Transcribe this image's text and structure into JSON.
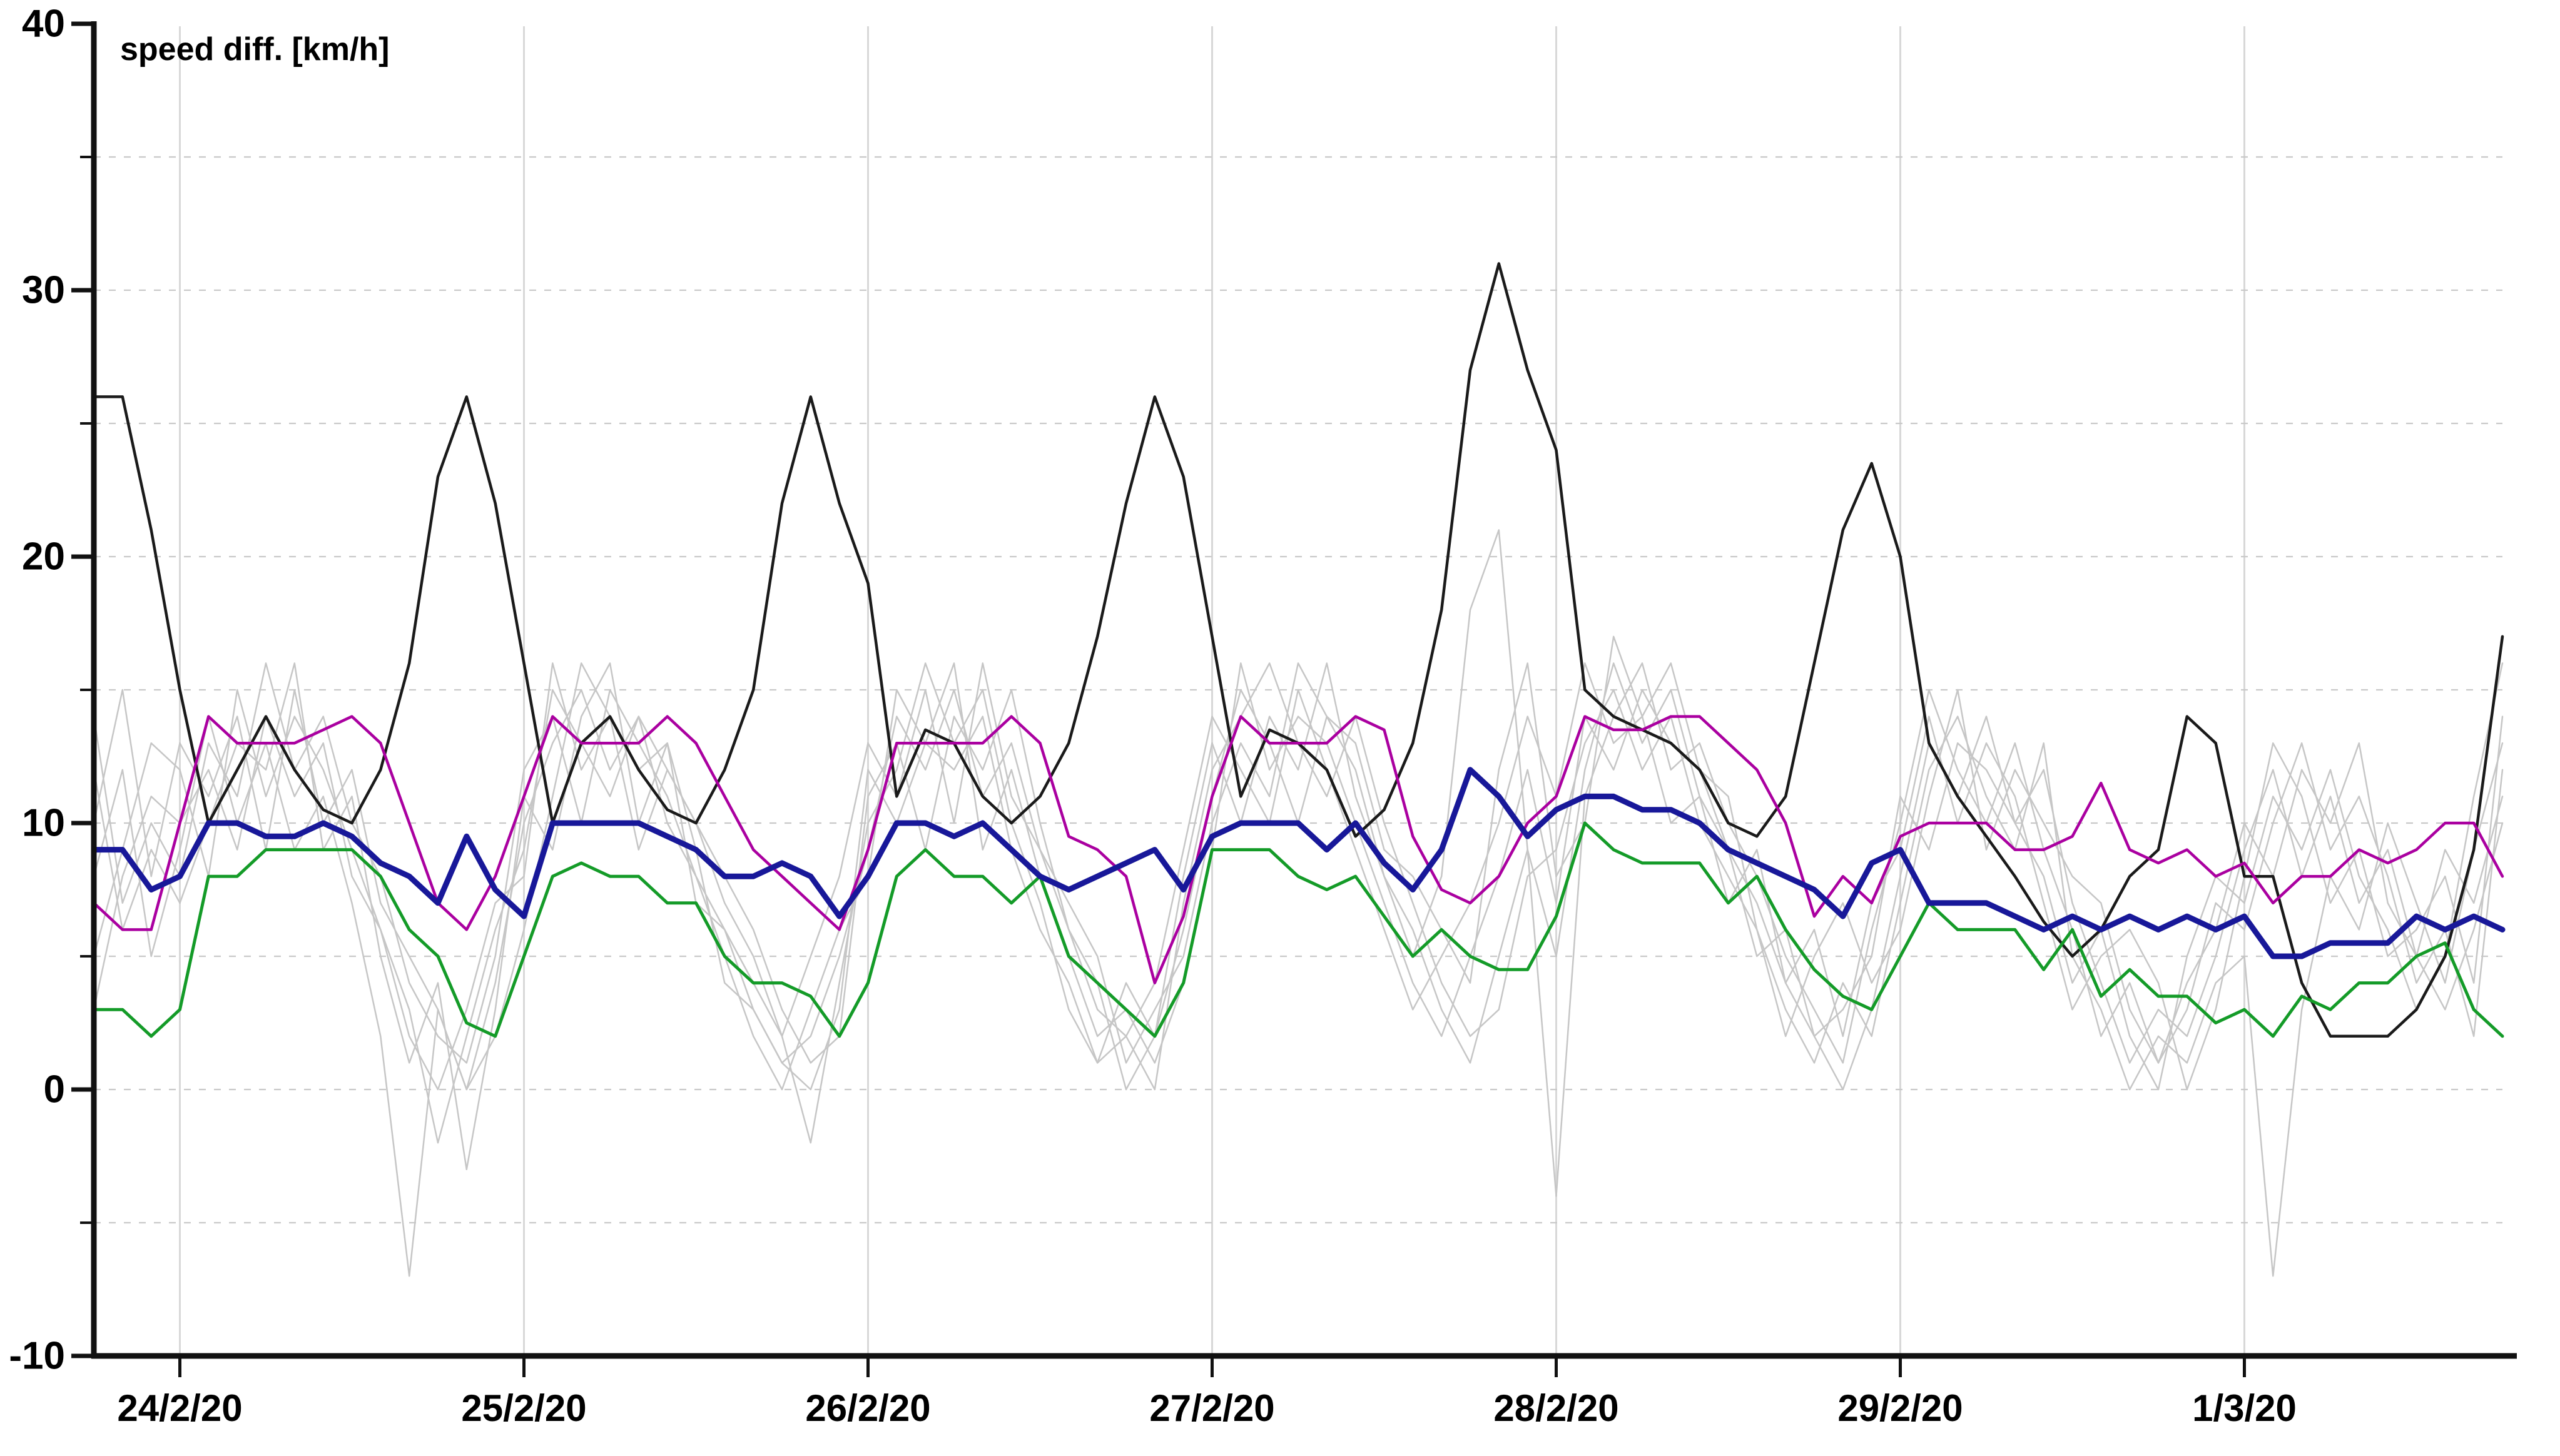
{
  "title": "speed diff. [km/h]",
  "colors": {
    "black": "#1a1a1a",
    "magenta": "#aa00a0",
    "blue": "#181899",
    "green": "#149b28",
    "gray": "#c6c6c6",
    "grid_dashed": "#c9c9c9",
    "grid_day": "#d8d8d8",
    "axis": "#111111"
  },
  "chart_data": {
    "type": "line",
    "title": "speed diff. [km/h]",
    "xlabel": "",
    "ylabel": "speed diff. [km/h]",
    "ylim": [
      -10,
      40
    ],
    "y_major_ticks": [
      40,
      30,
      20,
      10,
      0,
      -10
    ],
    "y_major_tick_labels": [
      "40",
      "30",
      "20",
      "10",
      "0",
      "-10"
    ],
    "y_minor_gridlines": [
      35,
      30,
      25,
      20,
      15,
      10,
      5,
      0,
      -5
    ],
    "grid": "dashed horizontal every 5, solid vertical per day",
    "legend": "none",
    "x_tick_labels": [
      "24/2/20",
      "25/2/20",
      "26/2/20",
      "27/2/20",
      "28/2/20",
      "29/2/20",
      "1/3/20"
    ],
    "x_start": "23/2/20 18:00",
    "x_step_hours": 2,
    "x_total_points": 85,
    "x_day_tick_indices": [
      3,
      15,
      27,
      39,
      51,
      63,
      75
    ],
    "series": [
      {
        "name": "gray-1",
        "color_key": "gray",
        "width": 2.5,
        "values": [
          8,
          12,
          5,
          9,
          14,
          10,
          13,
          9,
          11,
          7,
          2,
          -7,
          3,
          0,
          4,
          10,
          13,
          15,
          12,
          14,
          10,
          8,
          6,
          3,
          1,
          2,
          5,
          9,
          14,
          12,
          15,
          11,
          13,
          9,
          6,
          4,
          0,
          2,
          6,
          11,
          15,
          13,
          10,
          14,
          12,
          8,
          5,
          8,
          18,
          21,
          9,
          5,
          12,
          16,
          13,
          15,
          11,
          9,
          7,
          4,
          2,
          0,
          3,
          8,
          13,
          11,
          14,
          10,
          12,
          7,
          4,
          1,
          3,
          2,
          5,
          9,
          12,
          8,
          11,
          7,
          9,
          5,
          3,
          6,
          10
        ]
      },
      {
        "name": "gray-2",
        "color_key": "gray",
        "width": 2.5,
        "values": [
          5,
          9,
          13,
          12,
          8,
          15,
          11,
          14,
          12,
          9,
          6,
          2,
          0,
          3,
          7,
          8,
          16,
          12,
          14,
          9,
          12,
          10,
          7,
          5,
          2,
          -2,
          4,
          10,
          12,
          16,
          13,
          15,
          10,
          7,
          3,
          1,
          4,
          2,
          8,
          13,
          10,
          14,
          12,
          16,
          11,
          8,
          6,
          3,
          1,
          5,
          9,
          -4,
          11,
          14,
          16,
          12,
          13,
          10,
          8,
          5,
          3,
          1,
          6,
          10,
          15,
          12,
          10,
          13,
          9,
          6,
          2,
          4,
          1,
          3,
          7,
          6,
          10,
          13,
          9,
          11,
          8,
          4,
          6,
          2,
          12
        ]
      },
      {
        "name": "gray-3",
        "color_key": "gray",
        "width": 2.5,
        "values": [
          14,
          7,
          10,
          8,
          13,
          11,
          16,
          12,
          14,
          10,
          8,
          4,
          2,
          1,
          5,
          12,
          14,
          10,
          15,
          13,
          11,
          8,
          5,
          2,
          0,
          3,
          6,
          8,
          15,
          13,
          12,
          14,
          9,
          6,
          4,
          1,
          2,
          0,
          7,
          12,
          14,
          16,
          13,
          11,
          14,
          10,
          7,
          4,
          2,
          3,
          8,
          9,
          13,
          15,
          12,
          14,
          10,
          8,
          6,
          3,
          1,
          4,
          2,
          7,
          12,
          14,
          11,
          9,
          13,
          5,
          3,
          0,
          2,
          1,
          4,
          5,
          -7,
          3,
          8,
          6,
          10,
          7,
          4,
          9,
          13
        ]
      },
      {
        "name": "gray-4",
        "color_key": "gray",
        "width": 2.5,
        "values": [
          10,
          15,
          8,
          13,
          11,
          14,
          9,
          15,
          10,
          12,
          7,
          5,
          3,
          0,
          2,
          6,
          11,
          16,
          14,
          12,
          13,
          9,
          4,
          3,
          1,
          0,
          3,
          12,
          10,
          13,
          16,
          9,
          12,
          8,
          5,
          2,
          3,
          1,
          4,
          9,
          16,
          12,
          14,
          13,
          10,
          7,
          4,
          2,
          5,
          8,
          12,
          7,
          14,
          12,
          15,
          13,
          12,
          9,
          5,
          6,
          2,
          3,
          5,
          11,
          9,
          13,
          12,
          10,
          8,
          4,
          6,
          2,
          0,
          5,
          8,
          7,
          11,
          9,
          12,
          8,
          6,
          3,
          5,
          11,
          16
        ]
      },
      {
        "name": "gray-5",
        "color_key": "gray",
        "width": 2.5,
        "values": [
          3,
          8,
          11,
          10,
          12,
          9,
          14,
          11,
          13,
          8,
          6,
          3,
          -2,
          2,
          6,
          9,
          15,
          13,
          11,
          14,
          12,
          10,
          8,
          6,
          3,
          1,
          2,
          11,
          13,
          9,
          14,
          12,
          15,
          10,
          6,
          3,
          2,
          4,
          9,
          14,
          12,
          10,
          15,
          12,
          9,
          6,
          3,
          5,
          7,
          10,
          14,
          11,
          16,
          13,
          14,
          10,
          11,
          7,
          9,
          4,
          6,
          2,
          7,
          9,
          14,
          10,
          13,
          11,
          7,
          3,
          5,
          6,
          4,
          0,
          3,
          8,
          13,
          11,
          7,
          9,
          5,
          6,
          8,
          4,
          14
        ]
      },
      {
        "name": "gray-6",
        "color_key": "gray",
        "width": 2.5,
        "values": [
          12,
          6,
          9,
          7,
          10,
          13,
          12,
          16,
          9,
          11,
          5,
          1,
          4,
          -3,
          3,
          11,
          9,
          14,
          16,
          10,
          13,
          7,
          6,
          4,
          2,
          5,
          8,
          13,
          11,
          15,
          10,
          16,
          11,
          9,
          7,
          5,
          1,
          3,
          5,
          10,
          13,
          11,
          16,
          14,
          13,
          9,
          8,
          6,
          4,
          12,
          16,
          8,
          10,
          17,
          14,
          16,
          12,
          11,
          6,
          2,
          5,
          7,
          4,
          6,
          11,
          15,
          9,
          12,
          10,
          8,
          7,
          3,
          1,
          4,
          6,
          10,
          8,
          12,
          10,
          13,
          7,
          5,
          9,
          7,
          11
        ]
      },
      {
        "name": "black",
        "color_key": "black",
        "width": 4.5,
        "values": [
          26,
          26,
          21,
          15,
          10,
          12,
          14,
          12,
          10.5,
          10,
          12,
          16,
          23,
          26,
          22,
          16,
          10,
          13,
          14,
          12,
          10.5,
          10,
          12,
          15,
          22,
          26,
          22,
          19,
          11,
          13.5,
          13,
          11,
          10,
          11,
          13,
          17,
          22,
          26,
          23,
          17,
          11,
          13.5,
          13,
          12,
          9.5,
          10.5,
          13,
          18,
          27,
          31,
          27,
          24,
          15,
          14,
          13.5,
          13,
          12,
          10,
          9.5,
          11,
          16,
          21,
          23.5,
          20,
          13,
          11,
          9.5,
          8,
          6.3,
          5,
          6,
          8,
          9,
          14,
          13,
          8,
          8,
          4,
          2,
          2,
          2,
          3,
          5,
          9,
          17
        ]
      },
      {
        "name": "magenta",
        "color_key": "magenta",
        "width": 4.5,
        "values": [
          7,
          6,
          6,
          10,
          14,
          13,
          13,
          13,
          13.5,
          14,
          13,
          10,
          7,
          6,
          8,
          11,
          14,
          13,
          13,
          13,
          14,
          13,
          11,
          9,
          8,
          7,
          6,
          9,
          13,
          13,
          13,
          13,
          14,
          13,
          9.5,
          9,
          8,
          4,
          6.5,
          11,
          14,
          13,
          13,
          13,
          14,
          13.5,
          9.5,
          7.5,
          7,
          8,
          10,
          11,
          14,
          13.5,
          13.5,
          14,
          14,
          13,
          12,
          10,
          6.5,
          8,
          7,
          9.5,
          10,
          10,
          10,
          9,
          9,
          9.5,
          11.5,
          9,
          8.5,
          9,
          8,
          8.5,
          7,
          8,
          8,
          9,
          8.5,
          9,
          10,
          10,
          8
        ]
      },
      {
        "name": "green",
        "color_key": "green",
        "width": 5,
        "values": [
          3,
          3,
          2,
          3,
          8,
          8,
          9,
          9,
          9,
          9,
          8,
          6,
          5,
          2.5,
          2,
          5,
          8,
          8.5,
          8,
          8,
          7,
          7,
          5,
          4,
          4,
          3.5,
          2,
          4,
          8,
          9,
          8,
          8,
          7,
          8,
          5,
          4,
          3,
          2,
          4,
          9,
          9,
          9,
          8,
          7.5,
          8,
          6.5,
          5,
          6,
          5,
          4.5,
          4.5,
          6.5,
          10,
          9,
          8.5,
          8.5,
          8.5,
          7,
          8,
          6,
          4.5,
          3.5,
          3,
          5,
          7,
          6,
          6,
          6,
          4.5,
          6,
          3.5,
          4.5,
          3.5,
          3.5,
          2.5,
          3,
          2,
          3.5,
          3,
          4,
          4,
          5,
          5.5,
          3,
          2
        ]
      },
      {
        "name": "blue-thick",
        "color_key": "blue",
        "width": 9,
        "values": [
          9,
          9,
          7.5,
          8,
          10,
          10,
          9.5,
          9.5,
          10,
          9.5,
          8.5,
          8,
          7,
          9.5,
          7.5,
          6.5,
          10,
          10,
          10,
          10,
          9.5,
          9,
          8,
          8,
          8.5,
          8,
          6.5,
          8,
          10,
          10,
          9.5,
          10,
          9,
          8,
          7.5,
          8,
          8.5,
          9,
          7.5,
          9.5,
          10,
          10,
          10,
          9,
          10,
          8.5,
          7.5,
          9,
          12,
          11,
          9.5,
          10.5,
          11,
          11,
          10.5,
          10.5,
          10,
          9,
          8.5,
          8,
          7.5,
          6.5,
          8.5,
          9,
          7,
          7,
          7,
          6.5,
          6,
          6.5,
          6,
          6.5,
          6,
          6.5,
          6,
          6.5,
          5,
          5,
          5.5,
          5.5,
          5.5,
          6.5,
          6,
          6.5,
          6
        ]
      }
    ]
  }
}
